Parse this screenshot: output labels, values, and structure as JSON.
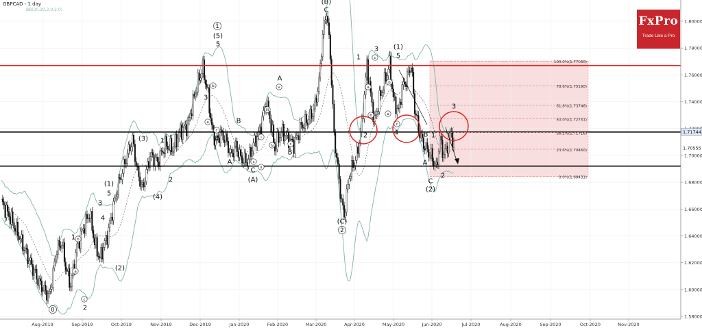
{
  "header": {
    "symbol": "GBPCAD - 1 day",
    "indicator": "BB(20,20,2,0,2,0)"
  },
  "logo": {
    "brand": "FxPro",
    "tagline": "Trade Like a Pro",
    "color": "#c8262c"
  },
  "chart_data": {
    "type": "candlestick",
    "timeframe": "1 day",
    "instrument": "GBPCAD",
    "ylim": [
      1.575,
      1.815
    ],
    "y_ticks": [
      "1.80000",
      "1.78000",
      "1.76000",
      "1.74000",
      "1.72000",
      "1.70000",
      "1.68000",
      "1.66000",
      "1.64000",
      "1.62000",
      "1.60000",
      "1.58000"
    ],
    "y_values": [
      1.8,
      1.78,
      1.76,
      1.74,
      1.72,
      1.7,
      1.68,
      1.66,
      1.64,
      1.62,
      1.6,
      1.58
    ],
    "x_ticks": [
      "Aug-2019",
      "Sep-2019",
      "Oct-2019",
      "Nov-2019",
      "Dec-2019",
      "Jan-2020",
      "Feb-2020",
      "Mar-2020",
      "Apr-2020",
      "May-2020",
      "Jun-2020",
      "Jul-2020",
      "Aug-2020",
      "Sep-2020",
      "Oct-2020",
      "Nov-2020"
    ],
    "price_labels": [
      {
        "text": "1.71744",
        "value": 1.71744,
        "style": "highlight"
      },
      {
        "text": "1.70555",
        "value": 1.70555,
        "style": "plain"
      }
    ],
    "horizontal_lines": [
      {
        "value": 1.767,
        "color": "#e0261f"
      },
      {
        "value": 1.7174,
        "color": "#000000"
      },
      {
        "value": 1.692,
        "color": "#000000"
      }
    ],
    "fibonacci": {
      "high": 1.7703,
      "low": 1.68431,
      "levels": [
        {
          "label": "100.0%(1.77030)",
          "value": 1.7703
        },
        {
          "label": "78.6%(1.75190)",
          "value": 1.7519
        },
        {
          "label": "61.8%(1.73746)",
          "value": 1.73746
        },
        {
          "label": "50.0%(1.72731)",
          "value": 1.72731
        },
        {
          "label": "38.2%(1.71716)",
          "value": 1.71716
        },
        {
          "label": "23.6%(1.70460)",
          "value": 1.7046
        },
        {
          "label": "0.0%(1.68431)",
          "value": 1.68431
        }
      ]
    },
    "wave_labels": [
      {
        "text": "0",
        "circled": true
      },
      {
        "text": "2"
      },
      {
        "text": "c",
        "circled": true,
        "small": true
      },
      {
        "text": "1"
      },
      {
        "text": "b",
        "circled": true,
        "small": true
      },
      {
        "text": "a",
        "circled": true,
        "small": true
      },
      {
        "text": "(1)"
      },
      {
        "text": "5"
      },
      {
        "text": "3"
      },
      {
        "text": "4"
      },
      {
        "text": "(2)"
      },
      {
        "text": "(3)"
      },
      {
        "text": "1"
      },
      {
        "text": "(4)"
      },
      {
        "text": "2"
      },
      {
        "text": "1",
        "circled": true
      },
      {
        "text": "(5)"
      },
      {
        "text": "5"
      },
      {
        "text": "3"
      },
      {
        "text": "b",
        "circled": true,
        "small": true
      },
      {
        "text": "4"
      },
      {
        "text": "c",
        "circled": true,
        "small": true
      },
      {
        "text": "a",
        "circled": true,
        "small": true
      },
      {
        "text": "A"
      },
      {
        "text": "B"
      },
      {
        "text": "C"
      },
      {
        "text": "c",
        "circled": true,
        "small": true
      },
      {
        "text": "(A)"
      },
      {
        "text": "ii",
        "circled": true,
        "small": true
      },
      {
        "text": "i",
        "circled": true,
        "small": true
      },
      {
        "text": "iii",
        "circled": true,
        "small": true
      },
      {
        "text": "iv",
        "circled": true,
        "small": true
      },
      {
        "text": "A"
      },
      {
        "text": "v",
        "circled": true,
        "small": true
      },
      {
        "text": "B"
      },
      {
        "text": "c",
        "circled": true,
        "small": true
      },
      {
        "text": "(B)"
      },
      {
        "text": "C"
      },
      {
        "text": "(C)"
      },
      {
        "text": "2",
        "circled": true
      },
      {
        "text": "1"
      },
      {
        "text": "a",
        "circled": true,
        "small": true
      },
      {
        "text": "2"
      },
      {
        "text": "b",
        "circled": true,
        "small": true
      },
      {
        "text": "3"
      },
      {
        "text": "c",
        "circled": true,
        "small": true
      },
      {
        "text": "a",
        "circled": true,
        "small": true
      },
      {
        "text": "b",
        "circled": true,
        "small": true
      },
      {
        "text": "(1)"
      },
      {
        "text": "5"
      },
      {
        "text": "c",
        "circled": true,
        "small": true
      },
      {
        "text": "4"
      },
      {
        "text": "B"
      },
      {
        "text": "A"
      },
      {
        "text": "C"
      },
      {
        "text": "(2)"
      },
      {
        "text": "1"
      },
      {
        "text": "2"
      },
      {
        "text": "3"
      }
    ]
  }
}
